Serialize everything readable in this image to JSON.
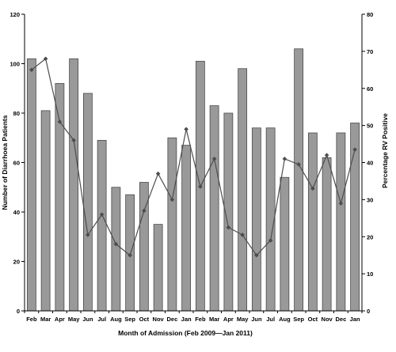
{
  "chart_data": {
    "type": "bar+line",
    "title": "",
    "xlabel": "Month of Admission (Feb 2009—Jan 2011)",
    "ylabel_left": "Number of Diarrhoea Patients",
    "ylabel_right": "Percentage RV Positive",
    "categories": [
      "Feb",
      "Mar",
      "Apr",
      "May",
      "Jun",
      "Jul",
      "Aug",
      "Sep",
      "Oct",
      "Nov",
      "Dec",
      "Jan",
      "Feb",
      "Mar",
      "Apr",
      "May",
      "Jun",
      "Jul",
      "Aug",
      "Sep",
      "Oct",
      "Nov",
      "Dec",
      "Jan"
    ],
    "ylim_left": [
      0,
      120
    ],
    "yticks_left": [
      0,
      20,
      40,
      60,
      80,
      100,
      120
    ],
    "ylim_right": [
      0,
      80
    ],
    "yticks_right": [
      0,
      10,
      20,
      30,
      40,
      50,
      60,
      70,
      80
    ],
    "series": [
      {
        "type": "bar",
        "axis": "left",
        "values": [
          102,
          81,
          92,
          102,
          88,
          69,
          50,
          47,
          52,
          35,
          70,
          67,
          101,
          83,
          80,
          98,
          74,
          74,
          54,
          106,
          72,
          62,
          72,
          76
        ]
      },
      {
        "type": "line",
        "axis": "right",
        "values": [
          65,
          68,
          51,
          46,
          20.5,
          26,
          18,
          15,
          27,
          37,
          30,
          49,
          33.5,
          41,
          22.5,
          20.5,
          15,
          19,
          41,
          39.5,
          33,
          42,
          29,
          43.5
        ]
      }
    ],
    "colors": {
      "bar_fill": "#999999",
      "bar_stroke": "#4a4a4a",
      "line": "#4d4d4d",
      "axis": "#000000"
    },
    "grid": false,
    "legend": "none"
  }
}
